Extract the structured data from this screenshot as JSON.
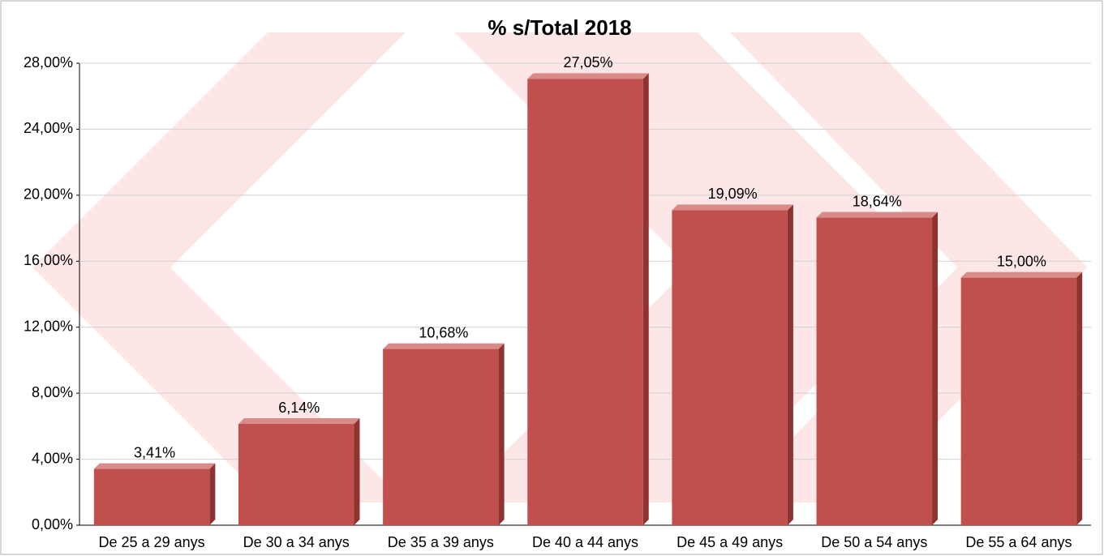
{
  "chart_data": {
    "type": "bar",
    "title": "% s/Total 2018",
    "categories": [
      "De 25 a 29 anys",
      "De 30 a 34 anys",
      "De 35 a 39 anys",
      "De 40 a 44 anys",
      "De 45 a 49 anys",
      "De 50 a 54 anys",
      "De 55 a 64 anys"
    ],
    "values": [
      3.41,
      6.14,
      10.68,
      27.05,
      19.09,
      18.64,
      15.0
    ],
    "value_labels": [
      "3,41%",
      "6,14%",
      "10,68%",
      "27,05%",
      "19,09%",
      "18,64%",
      "15,00%"
    ],
    "color": "#c0504d",
    "ylim": [
      0,
      28
    ],
    "yticks": [
      {
        "value": 0,
        "label": "0,00%"
      },
      {
        "value": 4,
        "label": "4,00%"
      },
      {
        "value": 8,
        "label": "8,00%"
      },
      {
        "value": 12,
        "label": "12,00%"
      },
      {
        "value": 16,
        "label": "16,00%"
      },
      {
        "value": 20,
        "label": "20,00%"
      },
      {
        "value": 24,
        "label": "24,00%"
      },
      {
        "value": 28,
        "label": "28,00%"
      }
    ],
    "grid": true
  }
}
